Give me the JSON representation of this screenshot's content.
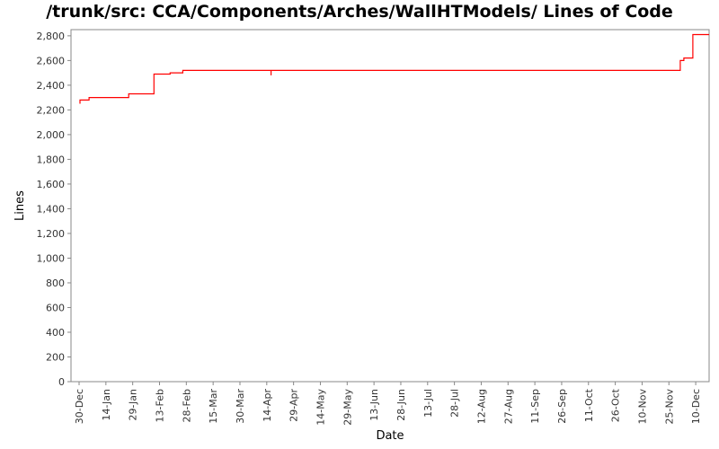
{
  "chart_data": {
    "type": "line",
    "title": "/trunk/src: CCA/Components/Arches/WallHTModels/ Lines of Code",
    "xlabel": "Date",
    "ylabel": "Lines",
    "ylim": [
      0,
      2850
    ],
    "yticks": [
      0,
      200,
      400,
      600,
      800,
      1000,
      1200,
      1400,
      1600,
      1800,
      2000,
      2200,
      2400,
      2600,
      2800
    ],
    "ytick_labels": [
      "0",
      "200",
      "400",
      "600",
      "800",
      "1,000",
      "1,200",
      "1,400",
      "1,600",
      "1,800",
      "2,000",
      "2,200",
      "2,400",
      "2,600",
      "2,800"
    ],
    "xlim": [
      "Dec 27",
      "Dec 15"
    ],
    "xtick_labels": [
      "30-Dec",
      "14-Jan",
      "29-Jan",
      "13-Feb",
      "28-Feb",
      "15-Mar",
      "30-Mar",
      "14-Apr",
      "29-Apr",
      "14-May",
      "29-May",
      "13-Jun",
      "28-Jun",
      "13-Jul",
      "28-Jul",
      "12-Aug",
      "27-Aug",
      "11-Sep",
      "26-Sep",
      "11-Oct",
      "26-Oct",
      "10-Nov",
      "25-Nov",
      "10-Dec"
    ],
    "grid": false,
    "line_color": "#ff0000",
    "series": [
      {
        "x": [
          "Jan 1",
          "Jan 1",
          "Jan 1",
          "Jan 1",
          "Jan 6",
          "Jan 6",
          "Jan 28",
          "Jan 28",
          "Feb 4",
          "Feb 4",
          "Feb 11",
          "Feb 11",
          "Feb 20",
          "Feb 20",
          "Feb 27",
          "Feb 27",
          "Apr 16",
          "Apr 16",
          "Apr 16",
          "Nov 29",
          "Nov 29",
          "Dec 1",
          "Dec 1",
          "Dec 6",
          "Dec 6",
          "Dec 15"
        ],
        "y": [
          2250,
          2280,
          2280,
          2280,
          2280,
          2300,
          2300,
          2330,
          2330,
          2330,
          2330,
          2490,
          2490,
          2500,
          2500,
          2520,
          2520,
          2480,
          2520,
          2520,
          2600,
          2600,
          2620,
          2620,
          2810,
          2810
        ]
      }
    ]
  }
}
